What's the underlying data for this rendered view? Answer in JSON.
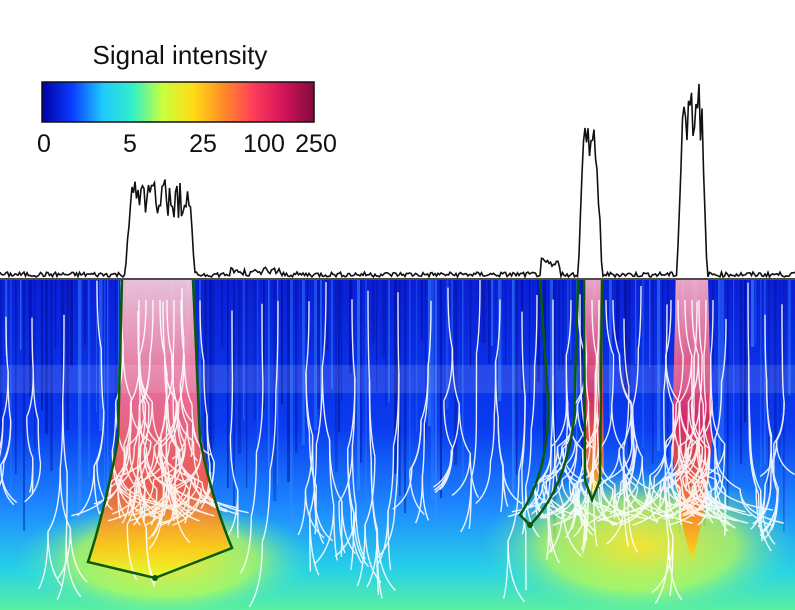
{
  "chart_data": {
    "type": "heatmap",
    "colorbar": {
      "title": "Signal intensity",
      "ticks": [
        "0",
        "5",
        "25",
        "100",
        "250"
      ],
      "tick_values": [
        0,
        5,
        25,
        100,
        250
      ],
      "range": [
        0,
        250
      ],
      "colors": [
        "#0000a6",
        "#0a3cff",
        "#1ec8ff",
        "#32f0c8",
        "#c8ff3c",
        "#ffdc14",
        "#ff8c28",
        "#ff3c5a",
        "#d2145a",
        "#820a3c"
      ]
    },
    "signal_trace": {
      "baseline": 0,
      "peaks": [
        {
          "center": 160,
          "width": 70,
          "height": 90
        },
        {
          "center": 590,
          "width": 24,
          "height": 155
        },
        {
          "center": 692,
          "width": 30,
          "height": 200
        }
      ]
    },
    "highlight_outline_color": "#0a5a0a",
    "tree_color": "#ffffff"
  }
}
